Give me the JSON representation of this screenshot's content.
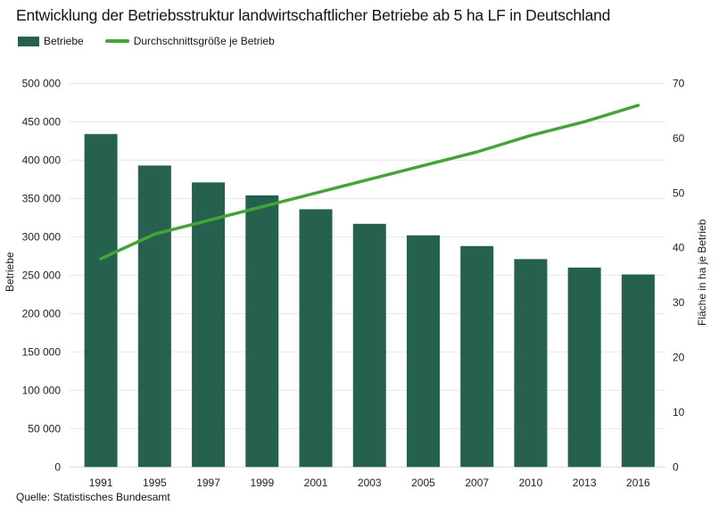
{
  "title": "Entwicklung der Betriebsstruktur landwirtschaftlicher Betriebe ab 5 ha LF in Deutschland",
  "source": "Quelle: Statistisches Bundesamt",
  "chart_data": {
    "type": "bar+line",
    "title": "Entwicklung der Betriebsstruktur landwirtschaftlicher Betriebe ab 5 ha LF in Deutschland",
    "categories": [
      "1991",
      "1995",
      "1997",
      "1999",
      "2001",
      "2003",
      "2005",
      "2007",
      "2010",
      "2013",
      "2016"
    ],
    "series": [
      {
        "name": "Betriebe",
        "type": "bar",
        "axis": "left",
        "color": "#26604e",
        "values": [
          434000,
          393000,
          371000,
          354000,
          336000,
          317000,
          302000,
          288000,
          271000,
          260000,
          251000
        ]
      },
      {
        "name": "Durchschnittsgröße je Betrieb",
        "type": "line",
        "axis": "right",
        "color": "#43a535",
        "values": [
          38,
          42.5,
          45,
          47.5,
          50,
          52.5,
          55,
          57.5,
          60.5,
          63,
          66
        ]
      }
    ],
    "left_axis": {
      "label": "Betriebe",
      "min": 0,
      "max": 500000,
      "step": 50000,
      "tick_format": "space-grouped"
    },
    "right_axis": {
      "label": "Fläche in ha je Betrieb",
      "min": 0,
      "max": 70,
      "step": 10
    },
    "grid": "horizontal",
    "legend_position": "top-left",
    "colors": {
      "grid": "#e8e8e8",
      "baseline": "#d9d9d9",
      "text": "#1f1f1f"
    }
  }
}
